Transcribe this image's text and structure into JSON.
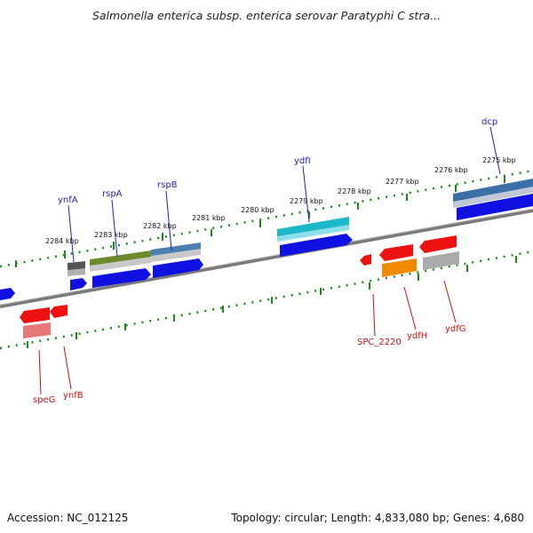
{
  "title": "Salmonella enterica subsp. enterica serovar Paratyphi C stra...",
  "footer": {
    "accession": "Accession: NC_012125",
    "info": "Topology: circular; Length: 4,833,080 bp; Genes: 4,680"
  },
  "scale_labels": [
    "2284 kbp",
    "2283 kbp",
    "2282 kbp",
    "2281 kbp",
    "2280 kbp",
    "2279 kbp",
    "2278 kbp",
    "2277 kbp",
    "2276 kbp",
    "2275 kbp"
  ],
  "genes_top": [
    {
      "name": "ynfA",
      "color": "#1f1fbf"
    },
    {
      "name": "rspA",
      "color": "#1f1fbf"
    },
    {
      "name": "rspB",
      "color": "#1f1fbf"
    },
    {
      "name": "ydfI",
      "color": "#1f1fbf"
    },
    {
      "name": "dcp",
      "color": "#1f1fbf"
    }
  ],
  "genes_bottom": [
    {
      "name": "speG",
      "color": "#cc1111"
    },
    {
      "name": "ynfB",
      "color": "#cc1111"
    },
    {
      "name": "SPC_2220",
      "color": "#cc1111"
    },
    {
      "name": "ydfH",
      "color": "#cc1111"
    },
    {
      "name": "ydfG",
      "color": "#cc1111"
    }
  ]
}
